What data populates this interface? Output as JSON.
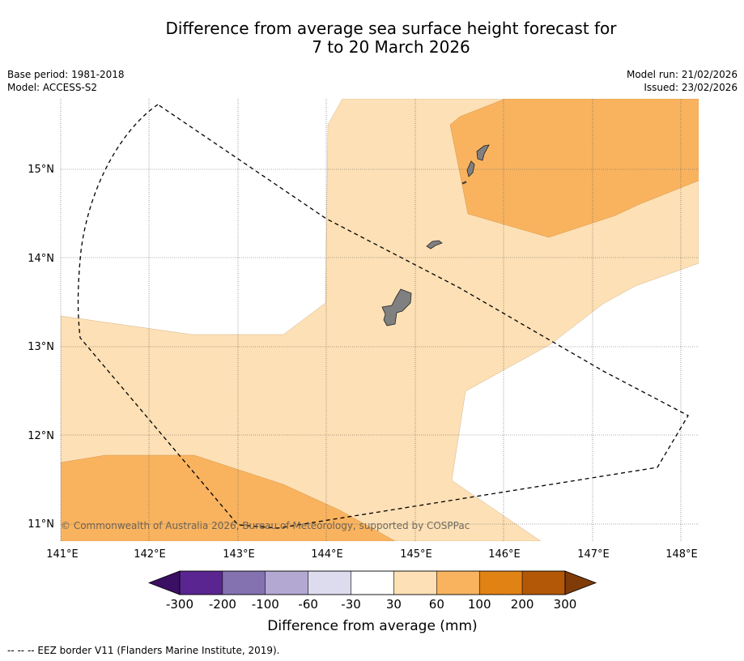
{
  "header": {
    "title_line1": "Difference from average sea surface height forecast for",
    "title_line2": "7 to 20 March 2026",
    "base_period": "Base period: 1981-2018",
    "model": "Model: ACCESS-S2",
    "model_run": "Model run: 21/02/2026",
    "issued": "Issued: 23/02/2026"
  },
  "map": {
    "lon_labels": [
      "141°E",
      "142°E",
      "143°E",
      "144°E",
      "145°E",
      "146°E",
      "147°E",
      "148°E"
    ],
    "lat_labels": [
      "15°N",
      "14°N",
      "13°N",
      "12°N",
      "11°N"
    ],
    "copyright": "© Commonwealth of Australia 2026, Bureau of Meteorology, supported by COSPPac"
  },
  "colorbar": {
    "tick_labels": [
      "-300",
      "-200",
      "-100",
      "-60",
      "-30",
      "30",
      "60",
      "100",
      "200",
      "300"
    ],
    "colors": [
      "#3b0f63",
      "#5a2590",
      "#8371b0",
      "#b3a8d2",
      "#dcdcee",
      "#ffffff",
      "#fde0b5",
      "#f9b35f",
      "#e08214",
      "#b35806",
      "#7f3b08"
    ],
    "label": "Difference from average (mm)"
  },
  "footer": {
    "eez_note": "--  --  -- EEZ border V11 (Flanders Marine Institute, 2019)."
  }
}
